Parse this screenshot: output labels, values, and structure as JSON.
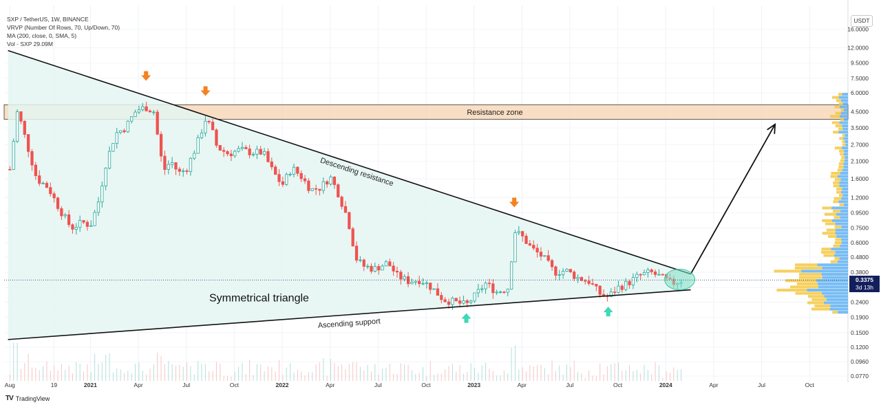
{
  "legend": {
    "symbol": "SXP / TetherUS, 1W, BINANCE",
    "vrvp": "VRVP (Number Of Rows, 70, Up/Down, 70)",
    "ma": "MA (200, close, 0, SMA, 5)",
    "vol": "Vol - SXP  29.09M"
  },
  "unit_button": "USDT",
  "current_price": {
    "value": "0.3375",
    "countdown": "3d 13h"
  },
  "brand": {
    "logo": "TV",
    "name": "TradingView"
  },
  "colors": {
    "up": "#26a69a",
    "down": "#ef5350",
    "triangle_fill": "#e4f6f2",
    "zone": "#f7d3b0",
    "arrow_down": "#f5811f",
    "arrow_up": "#3ed9b5",
    "vp_up": "#5fb0f2",
    "vp_down": "#f5c842"
  },
  "chart_data": {
    "type": "candlestick",
    "y_scale": "log",
    "ylim": [
      0.07,
      23
    ],
    "y_ticks": [
      "16.0000",
      "12.0000",
      "9.5000",
      "7.5000",
      "6.0000",
      "4.5000",
      "3.5000",
      "2.7000",
      "2.1000",
      "1.6000",
      "1.2000",
      "0.9500",
      "0.7500",
      "0.6000",
      "0.4800",
      "0.3800",
      "0.3000",
      "0.2400",
      "0.1900",
      "0.1500",
      "0.1200",
      "0.0960",
      "0.0770"
    ],
    "x_ticks": [
      {
        "label": "Aug",
        "t": 2020.58
      },
      {
        "label": "19",
        "t": 2020.81
      },
      {
        "label": "2021",
        "t": 2021.0
      },
      {
        "label": "Apr",
        "t": 2021.25
      },
      {
        "label": "Jul",
        "t": 2021.5
      },
      {
        "label": "Oct",
        "t": 2021.75
      },
      {
        "label": "2022",
        "t": 2022.0
      },
      {
        "label": "Apr",
        "t": 2022.25
      },
      {
        "label": "Jul",
        "t": 2022.5
      },
      {
        "label": "Oct",
        "t": 2022.75
      },
      {
        "label": "2023",
        "t": 2023.0
      },
      {
        "label": "Apr",
        "t": 2023.25
      },
      {
        "label": "Jul",
        "t": 2023.5
      },
      {
        "label": "Oct",
        "t": 2023.75
      },
      {
        "label": "2024",
        "t": 2024.0
      },
      {
        "label": "Apr",
        "t": 2024.25
      },
      {
        "label": "Jul",
        "t": 2024.5
      },
      {
        "label": "Oct",
        "t": 2024.75
      }
    ],
    "xlim": [
      2020.55,
      2024.95
    ],
    "close_anchors": [
      [
        2020.58,
        1.85
      ],
      [
        2020.62,
        4.6
      ],
      [
        2020.66,
        3.0
      ],
      [
        2020.72,
        1.6
      ],
      [
        2020.78,
        1.4
      ],
      [
        2020.84,
        1.0
      ],
      [
        2020.9,
        0.75
      ],
      [
        2020.96,
        0.82
      ],
      [
        2021.0,
        0.78
      ],
      [
        2021.04,
        1.1
      ],
      [
        2021.08,
        2.0
      ],
      [
        2021.13,
        3.2
      ],
      [
        2021.18,
        3.5
      ],
      [
        2021.24,
        4.6
      ],
      [
        2021.29,
        4.8
      ],
      [
        2021.33,
        4.5
      ],
      [
        2021.38,
        1.8
      ],
      [
        2021.42,
        2.1
      ],
      [
        2021.46,
        1.75
      ],
      [
        2021.5,
        1.85
      ],
      [
        2021.55,
        2.6
      ],
      [
        2021.6,
        4.0
      ],
      [
        2021.63,
        3.5
      ],
      [
        2021.66,
        2.6
      ],
      [
        2021.72,
        2.35
      ],
      [
        2021.78,
        2.5
      ],
      [
        2021.84,
        2.4
      ],
      [
        2021.9,
        2.4
      ],
      [
        2021.95,
        1.8
      ],
      [
        2022.0,
        1.45
      ],
      [
        2022.05,
        1.9
      ],
      [
        2022.1,
        1.65
      ],
      [
        2022.15,
        1.35
      ],
      [
        2022.2,
        1.4
      ],
      [
        2022.25,
        1.65
      ],
      [
        2022.29,
        1.3
      ],
      [
        2022.33,
        0.95
      ],
      [
        2022.36,
        0.7
      ],
      [
        2022.38,
        0.48
      ],
      [
        2022.42,
        0.42
      ],
      [
        2022.48,
        0.4
      ],
      [
        2022.55,
        0.44
      ],
      [
        2022.6,
        0.36
      ],
      [
        2022.66,
        0.33
      ],
      [
        2022.72,
        0.34
      ],
      [
        2022.78,
        0.3
      ],
      [
        2022.84,
        0.25
      ],
      [
        2022.9,
        0.24
      ],
      [
        2022.96,
        0.23
      ],
      [
        2023.0,
        0.26
      ],
      [
        2023.06,
        0.32
      ],
      [
        2023.12,
        0.28
      ],
      [
        2023.18,
        0.3
      ],
      [
        2023.21,
        0.72
      ],
      [
        2023.25,
        0.66
      ],
      [
        2023.3,
        0.55
      ],
      [
        2023.36,
        0.48
      ],
      [
        2023.42,
        0.38
      ],
      [
        2023.48,
        0.39
      ],
      [
        2023.54,
        0.35
      ],
      [
        2023.6,
        0.33
      ],
      [
        2023.66,
        0.27
      ],
      [
        2023.7,
        0.26
      ],
      [
        2023.75,
        0.3
      ],
      [
        2023.8,
        0.32
      ],
      [
        2023.86,
        0.36
      ],
      [
        2023.92,
        0.38
      ],
      [
        2023.98,
        0.35
      ],
      [
        2024.03,
        0.32
      ],
      [
        2024.08,
        0.335
      ]
    ],
    "annotations": {
      "resistance_zone": {
        "label": "Resistance zone",
        "low": 4.0,
        "high": 5.0
      },
      "descending_resistance": {
        "label": "Descending resistance",
        "from": [
          2020.57,
          11.5
        ],
        "to": [
          2024.13,
          0.37
        ]
      },
      "ascending_support": {
        "label": "Ascending support",
        "from": [
          2020.57,
          0.135
        ],
        "to": [
          2024.13,
          0.29
        ]
      },
      "pattern_label": "Symmetrical triangle",
      "projection": {
        "from": [
          2024.13,
          0.37
        ],
        "to": [
          2024.57,
          3.7
        ]
      },
      "down_arrows": [
        [
          2021.29,
          7.7
        ],
        [
          2021.6,
          6.1
        ],
        [
          2023.21,
          1.1
        ]
      ],
      "up_arrows": [
        [
          2022.96,
          0.19
        ],
        [
          2023.7,
          0.21
        ]
      ]
    }
  }
}
